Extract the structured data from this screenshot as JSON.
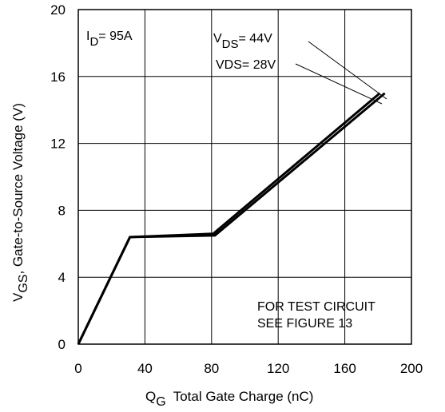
{
  "chart_data": {
    "type": "line",
    "xlabel": "Total Gate Charge (nC)",
    "xlabel_symbol": "Q",
    "xlabel_sub": "G",
    "ylabel": ", Gate-to-Source Voltage (V)",
    "ylabel_symbol": "V",
    "ylabel_sub": "GS",
    "xlim": [
      0,
      200
    ],
    "ylim": [
      0,
      20
    ],
    "xticks": [
      0,
      40,
      80,
      120,
      160,
      200
    ],
    "yticks": [
      0,
      4,
      8,
      12,
      16,
      20
    ],
    "grid": true,
    "series": [
      {
        "name": "V_DS= 44V",
        "x": [
          0,
          31,
          82,
          184
        ],
        "y": [
          0,
          6.4,
          6.5,
          15.0
        ]
      },
      {
        "name": "VDS= 28V",
        "x": [
          0,
          31,
          81,
          181
        ],
        "y": [
          0,
          6.4,
          6.6,
          15.0
        ]
      }
    ],
    "annotations": {
      "id_symbol": "I",
      "id_sub": "D",
      "id_value": "= 95A",
      "vds44_symbol": "V",
      "vds44_sub": "DS",
      "vds44_value": "= 44V",
      "vds28": "VDS= 28V",
      "note_line1": "FOR TEST CIRCUIT",
      "note_line2": "SEE FIGURE 13"
    }
  }
}
